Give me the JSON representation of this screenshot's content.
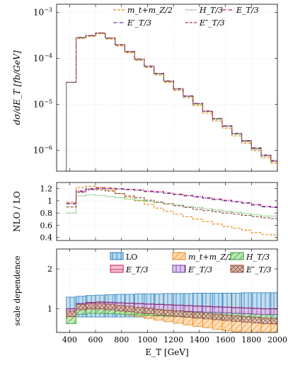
{
  "chart_data": [
    {
      "type": "line",
      "panel": "main",
      "ylabel": "dσ/dE_T [fb/GeV]",
      "yscale": "log",
      "xlim": [
        300,
        2000
      ],
      "ylim": [
        3.5e-07,
        0.0015
      ],
      "grid": true,
      "legend": "top-right",
      "yticks": [
        {
          "value": 1e-06,
          "base": "10",
          "exp": "−6"
        },
        {
          "value": 1e-05,
          "base": "10",
          "exp": "−5"
        },
        {
          "value": 0.0001,
          "base": "10",
          "exp": "−4"
        },
        {
          "value": 0.001,
          "base": "10",
          "exp": "−3"
        }
      ],
      "bin_edges": [
        375,
        450,
        525,
        600,
        675,
        750,
        825,
        900,
        975,
        1050,
        1125,
        1200,
        1275,
        1350,
        1425,
        1500,
        1575,
        1650,
        1725,
        1800,
        1875,
        1950,
        2000
      ],
      "series": [
        {
          "name": "m_t+m_Z/2",
          "key": "mtmz",
          "color": "#e8891a",
          "dash": "4,2",
          "values": [
            3e-05,
            0.000272,
            0.0003,
            0.000342,
            0.000262,
            0.000186,
            0.000132,
            9e-05,
            6.3e-05,
            4.3e-05,
            2.95e-05,
            2e-05,
            1.38e-05,
            9.3e-06,
            6.4e-06,
            4.35e-06,
            3e-06,
            2.05e-06,
            1.42e-06,
            9.8e-07,
            6.8e-07,
            5.2e-07
          ]
        },
        {
          "name": "H_T/3",
          "key": "ht",
          "color": "#2ca02c",
          "dash": "1.2,1.4",
          "values": [
            3e-05,
            0.00028,
            0.00031,
            0.000352,
            0.000272,
            0.000194,
            0.000138,
            9.4e-05,
            6.6e-05,
            4.55e-05,
            3.12e-05,
            2.12e-05,
            1.47e-05,
            1e-05,
            6.9e-06,
            4.7e-06,
            3.25e-06,
            2.22e-06,
            1.54e-06,
            1.06e-06,
            7.4e-07,
            5.6e-07
          ]
        },
        {
          "name": "E_T/3",
          "key": "et",
          "color": "#c2185b",
          "dash": "5,1.5,1,1.5",
          "values": [
            3e-05,
            0.000285,
            0.000315,
            0.000358,
            0.000278,
            0.000199,
            0.000142,
            9.7e-05,
            6.8e-05,
            4.7e-05,
            3.24e-05,
            2.2e-05,
            1.53e-05,
            1.05e-05,
            7.2e-06,
            4.95e-06,
            3.42e-06,
            2.35e-06,
            1.63e-06,
            1.13e-06,
            7.9e-07,
            6e-07
          ]
        },
        {
          "name": "E′_T/3",
          "key": "etp",
          "color": "#6a3fa0",
          "dash": "5,1.5,1,1.5",
          "values": [
            3e-05,
            0.000284,
            0.000314,
            0.000357,
            0.000277,
            0.000198,
            0.000141,
            9.6e-05,
            6.75e-05,
            4.65e-05,
            3.2e-05,
            2.18e-05,
            1.51e-05,
            1.04e-05,
            7.1e-06,
            4.9e-06,
            3.38e-06,
            2.32e-06,
            1.61e-06,
            1.11e-06,
            7.8e-07,
            5.9e-07
          ]
        },
        {
          "name": "E″_T/3",
          "key": "etpp",
          "color": "#8b4a3a",
          "dash": "4,2",
          "values": [
            3e-05,
            0.00028,
            0.000312,
            0.000354,
            0.000274,
            0.000196,
            0.000139,
            9.5e-05,
            6.65e-05,
            4.6e-05,
            3.15e-05,
            2.14e-05,
            1.49e-05,
            1.02e-05,
            7e-06,
            4.8e-06,
            3.3e-06,
            2.27e-06,
            1.57e-06,
            1.08e-06,
            7.6e-07,
            5.7e-07
          ]
        }
      ]
    },
    {
      "type": "line",
      "panel": "ratio",
      "ylabel": "NLO / LO",
      "xlim": [
        300,
        2000
      ],
      "ylim": [
        0.35,
        1.3
      ],
      "grid": true,
      "yticks": [
        {
          "value": 0.4,
          "label": "0.4"
        },
        {
          "value": 0.6,
          "label": "0.6"
        },
        {
          "value": 0.8,
          "label": "0.8"
        },
        {
          "value": 1.0,
          "label": "1"
        },
        {
          "value": 1.2,
          "label": "1.2"
        }
      ],
      "bin_edges": [
        375,
        450,
        525,
        600,
        675,
        750,
        825,
        900,
        975,
        1050,
        1125,
        1200,
        1275,
        1350,
        1425,
        1500,
        1575,
        1650,
        1725,
        1800,
        1875,
        1950,
        2000
      ],
      "series": [
        {
          "key": "mtmz",
          "values": [
            0.98,
            1.22,
            1.24,
            1.22,
            1.18,
            1.12,
            1.06,
            1.0,
            0.94,
            0.88,
            0.83,
            0.78,
            0.74,
            0.7,
            0.66,
            0.62,
            0.58,
            0.55,
            0.52,
            0.48,
            0.45,
            0.44
          ]
        },
        {
          "key": "ht",
          "values": [
            0.8,
            1.08,
            1.1,
            1.09,
            1.07,
            1.05,
            1.03,
            1.01,
            0.99,
            0.97,
            0.95,
            0.93,
            0.91,
            0.89,
            0.87,
            0.85,
            0.83,
            0.81,
            0.79,
            0.77,
            0.75,
            0.75
          ]
        },
        {
          "key": "et",
          "values": [
            0.96,
            1.16,
            1.2,
            1.21,
            1.21,
            1.2,
            1.19,
            1.18,
            1.16,
            1.15,
            1.13,
            1.11,
            1.09,
            1.07,
            1.05,
            1.03,
            1.01,
            0.99,
            0.97,
            0.94,
            0.91,
            0.9
          ]
        },
        {
          "key": "etp",
          "values": [
            0.95,
            1.15,
            1.19,
            1.2,
            1.2,
            1.19,
            1.18,
            1.17,
            1.15,
            1.14,
            1.12,
            1.1,
            1.08,
            1.06,
            1.04,
            1.02,
            1.0,
            0.98,
            0.96,
            0.93,
            0.9,
            0.89
          ]
        },
        {
          "key": "etpp",
          "values": [
            0.9,
            1.14,
            1.18,
            1.18,
            1.16,
            1.12,
            1.08,
            1.05,
            1.01,
            0.98,
            0.95,
            0.92,
            0.89,
            0.86,
            0.84,
            0.82,
            0.8,
            0.78,
            0.76,
            0.74,
            0.72,
            0.71
          ]
        }
      ]
    },
    {
      "type": "area",
      "panel": "scale",
      "ylabel": "scale dependence",
      "xlabel": "E_T [GeV]",
      "xlim": [
        300,
        2000
      ],
      "ylim": [
        0.4,
        2.5
      ],
      "grid": true,
      "legend": "top",
      "yticks": [
        {
          "value": 1,
          "label": "1"
        },
        {
          "value": 2,
          "label": "2"
        }
      ],
      "xticks": [
        400,
        600,
        800,
        1000,
        1200,
        1400,
        1600,
        1800,
        2000
      ],
      "bin_edges": [
        375,
        450,
        525,
        600,
        675,
        750,
        825,
        900,
        975,
        1050,
        1125,
        1200,
        1275,
        1350,
        1425,
        1500,
        1575,
        1650,
        1725,
        1800,
        1875,
        1950,
        2000
      ],
      "bands": [
        {
          "name": "LO",
          "key": "lo",
          "color": "#2c7fb8",
          "fill": "#b9d8ee",
          "pattern": "vertical",
          "lower": [
            0.78,
            0.79,
            0.79,
            0.79,
            0.79,
            0.79,
            0.79,
            0.79,
            0.79,
            0.79,
            0.79,
            0.79,
            0.79,
            0.79,
            0.79,
            0.79,
            0.79,
            0.79,
            0.79,
            0.79,
            0.79,
            0.79
          ],
          "upper": [
            1.29,
            1.31,
            1.33,
            1.34,
            1.35,
            1.36,
            1.36,
            1.37,
            1.37,
            1.37,
            1.38,
            1.38,
            1.38,
            1.39,
            1.39,
            1.39,
            1.39,
            1.39,
            1.4,
            1.4,
            1.4,
            1.4
          ]
        },
        {
          "name": "m_t+m_Z/2",
          "key": "mtmz",
          "color": "#e8891a",
          "fill": "#ffd9b0",
          "pattern": "diag-up",
          "lower": [
            0.7,
            0.94,
            0.97,
            0.96,
            0.93,
            0.88,
            0.84,
            0.8,
            0.75,
            0.71,
            0.67,
            0.63,
            0.59,
            0.55,
            0.52,
            0.48,
            0.45,
            0.42,
            0.39,
            0.37,
            0.34,
            0.33
          ],
          "upper": [
            1.0,
            1.12,
            1.15,
            1.14,
            1.12,
            1.09,
            1.06,
            1.02,
            0.98,
            0.94,
            0.91,
            0.88,
            0.85,
            0.82,
            0.79,
            0.76,
            0.73,
            0.7,
            0.67,
            0.64,
            0.62,
            0.6
          ]
        },
        {
          "name": "H_T/3",
          "key": "ht",
          "color": "#2ca02c",
          "fill": "#bfe5b8",
          "pattern": "diag-up",
          "lower": [
            0.62,
            0.86,
            0.88,
            0.88,
            0.87,
            0.86,
            0.85,
            0.84,
            0.83,
            0.82,
            0.81,
            0.8,
            0.79,
            0.78,
            0.77,
            0.76,
            0.75,
            0.74,
            0.73,
            0.72,
            0.71,
            0.71
          ],
          "upper": [
            0.82,
            1.05,
            1.07,
            1.07,
            1.06,
            1.05,
            1.04,
            1.03,
            1.02,
            1.01,
            1.0,
            0.99,
            0.98,
            0.97,
            0.96,
            0.95,
            0.94,
            0.93,
            0.92,
            0.91,
            0.9,
            0.9
          ]
        },
        {
          "name": "E_T/3",
          "key": "et",
          "color": "#c2185b",
          "fill": "#f6c2cf",
          "pattern": "horizontal",
          "lower": [
            0.9,
            1.02,
            1.03,
            1.03,
            1.02,
            1.01,
            1.0,
            0.99,
            0.98,
            0.97,
            0.96,
            0.95,
            0.94,
            0.93,
            0.92,
            0.91,
            0.9,
            0.89,
            0.88,
            0.87,
            0.86,
            0.86
          ],
          "upper": [
            1.0,
            1.13,
            1.16,
            1.17,
            1.16,
            1.15,
            1.14,
            1.13,
            1.12,
            1.11,
            1.1,
            1.09,
            1.08,
            1.07,
            1.06,
            1.05,
            1.04,
            1.03,
            1.02,
            1.01,
            1.0,
            1.0
          ]
        },
        {
          "name": "E′_T/3",
          "key": "etp",
          "color": "#6a3fa0",
          "fill": "#dcc8ee",
          "pattern": "vertical",
          "lower": [
            0.89,
            1.01,
            1.02,
            1.02,
            1.01,
            1.0,
            0.99,
            0.98,
            0.97,
            0.96,
            0.95,
            0.94,
            0.93,
            0.92,
            0.91,
            0.9,
            0.89,
            0.88,
            0.87,
            0.86,
            0.85,
            0.85
          ],
          "upper": [
            0.99,
            1.12,
            1.15,
            1.16,
            1.15,
            1.14,
            1.13,
            1.12,
            1.11,
            1.1,
            1.09,
            1.08,
            1.07,
            1.06,
            1.05,
            1.04,
            1.03,
            1.02,
            1.01,
            1.0,
            0.99,
            0.99
          ]
        },
        {
          "name": "E″_T/3",
          "key": "etpp",
          "color": "#8b4a3a",
          "fill": "#e3c4b6",
          "pattern": "crosshatch",
          "lower": [
            0.8,
            0.97,
            0.99,
            0.99,
            0.97,
            0.94,
            0.92,
            0.89,
            0.87,
            0.84,
            0.82,
            0.8,
            0.78,
            0.76,
            0.74,
            0.72,
            0.7,
            0.68,
            0.66,
            0.64,
            0.62,
            0.62
          ],
          "upper": [
            0.94,
            1.1,
            1.13,
            1.13,
            1.11,
            1.08,
            1.06,
            1.03,
            1.01,
            0.98,
            0.96,
            0.94,
            0.92,
            0.9,
            0.88,
            0.86,
            0.84,
            0.82,
            0.8,
            0.78,
            0.76,
            0.76
          ]
        }
      ]
    }
  ]
}
